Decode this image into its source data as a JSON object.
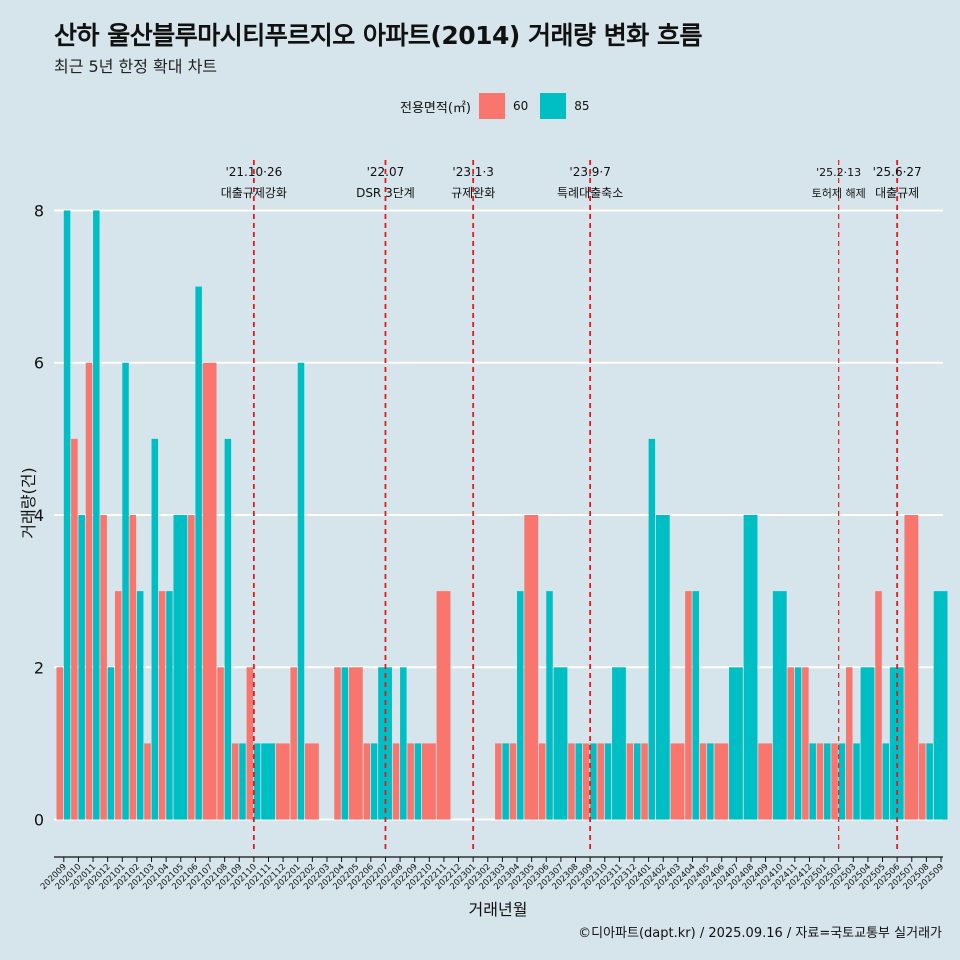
{
  "title": "산하 울산블루마시티푸르지오 아파트(2014) 거래량 변화 흐름",
  "subtitle": "최근 5년 한정 확대 차트",
  "caption": "©디아파트(dapt.kr) / 2025.09.16 / 자료=국토교통부 실거래가",
  "colors": {
    "background": "#d6e4eb",
    "s60": "#f8766d",
    "s85": "#00bfc4",
    "event_line": "#e31a1c"
  },
  "chart_data": {
    "type": "bar",
    "xlabel": "거래년월",
    "ylabel": "거래량(건)",
    "ylim": [
      -0.4,
      8.4
    ],
    "yticks": [
      0,
      2,
      4,
      6,
      8
    ],
    "legend": {
      "title": "전용면적(㎡)",
      "position": "top"
    },
    "months": [
      "202009",
      "202010",
      "202011",
      "202012",
      "202101",
      "202102",
      "202103",
      "202104",
      "202105",
      "202106",
      "202107",
      "202108",
      "202109",
      "202110",
      "202111",
      "202112",
      "202201",
      "202202",
      "202203",
      "202204",
      "202205",
      "202206",
      "202207",
      "202208",
      "202209",
      "202210",
      "202211",
      "202212",
      "202301",
      "202302",
      "202303",
      "202304",
      "202305",
      "202306",
      "202307",
      "202308",
      "202309",
      "202310",
      "202311",
      "202312",
      "202401",
      "202402",
      "202403",
      "202404",
      "202405",
      "202406",
      "202407",
      "202408",
      "202409",
      "202410",
      "202411",
      "202412",
      "202501",
      "202502",
      "202503",
      "202504",
      "202505",
      "202506",
      "202507",
      "202508",
      "202509"
    ],
    "series": [
      {
        "name": "60",
        "color": "#f8766d",
        "values": [
          2,
          5,
          6,
          4,
          3,
          4,
          1,
          3,
          0,
          4,
          6,
          2,
          1,
          2,
          0,
          1,
          2,
          1,
          0,
          2,
          2,
          1,
          0,
          1,
          1,
          1,
          3,
          0,
          0,
          0,
          1,
          1,
          4,
          1,
          0,
          1,
          1,
          1,
          0,
          1,
          1,
          0,
          1,
          3,
          1,
          1,
          0,
          0,
          1,
          0,
          2,
          2,
          1,
          1,
          2,
          0,
          3,
          0,
          4,
          1,
          0
        ]
      },
      {
        "name": "85",
        "color": "#00bfc4",
        "values": [
          8,
          4,
          8,
          2,
          6,
          3,
          5,
          3,
          4,
          7,
          0,
          5,
          1,
          1,
          1,
          0,
          6,
          0,
          0,
          2,
          0,
          1,
          2,
          2,
          1,
          0,
          0,
          0,
          0,
          0,
          1,
          3,
          0,
          3,
          2,
          1,
          1,
          1,
          2,
          1,
          5,
          4,
          0,
          3,
          1,
          0,
          2,
          4,
          0,
          3,
          2,
          1,
          1,
          1,
          1,
          2,
          1,
          2,
          0,
          1,
          3
        ]
      }
    ],
    "events": [
      {
        "date": "'21.10·26",
        "label": "대출규제강화",
        "month": "202110"
      },
      {
        "date": "'22.07",
        "label": "DSR 3단계",
        "month": "202207"
      },
      {
        "date": "'23.1·3",
        "label": "규제완화",
        "month": "202301"
      },
      {
        "date": "'23.9·7",
        "label": "특례대출축소",
        "month": "202309"
      },
      {
        "date": "'25.2·13",
        "label": "토허제 해제",
        "month": "202502"
      },
      {
        "date": "'25.6·27",
        "label": "대출규제",
        "month": "202506"
      }
    ]
  }
}
